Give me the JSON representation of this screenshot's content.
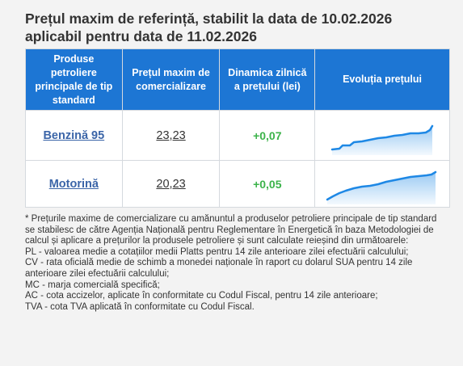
{
  "title_line1": "Prețul maxim de referință, stabilit la data de 10.02.2026",
  "title_line2": "aplicabil pentru data de 11.02.2026",
  "table": {
    "headers": [
      "Produse petroliere principale de tip standard",
      "Prețul maxim de comercializare",
      "Dinamica zilnică a prețului (lei)",
      "Evoluția prețului"
    ],
    "rows": [
      {
        "product": "Benzină 95",
        "price": "23,23",
        "delta": "+0,07",
        "trend_icon": "sparkline-area-chart"
      },
      {
        "product": "Motorină",
        "price": "20,23",
        "delta": "+0,05",
        "trend_icon": "sparkline-area-chart"
      }
    ]
  },
  "notes": [
    "* Prețurile maxime de comercializare cu amănuntul a produselor petroliere principale de tip standard se stabilesc de către Agenția Națională pentru Reglementare în Energetică în baza Metodologiei de calcul și aplicare a prețurilor la produsele petroliere și sunt calculate reieșind din următoarele:",
    "PL - valoarea medie a cotațiilor medii Platts pentru 14 zile anterioare zilei efectuării calculului;",
    "CV - rata oficială medie de schimb a monedei naționale în raport cu dolarul SUA pentru 14 zile anterioare zilei efectuării calculului;",
    "MC - marja comercială specifică;",
    "AC - cota accizelor, aplicate în conformitate cu Codul Fiscal, pentru 14 zile anterioare;",
    "TVA - cota TVA aplicată în conformitate cu Codul Fiscal."
  ],
  "colors": {
    "header_bg": "#1d76d4",
    "link": "#3b65a8",
    "delta_positive": "#3cb34a",
    "sparkline": "#1e88e5"
  }
}
